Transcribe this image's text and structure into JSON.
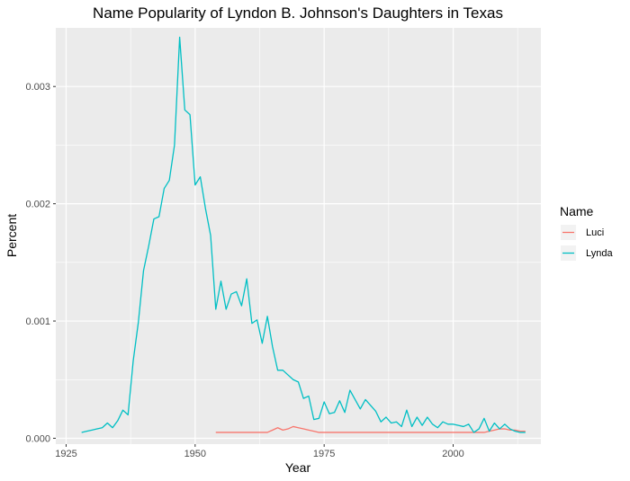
{
  "chart_data": {
    "type": "line",
    "title": "Name Popularity of Lyndon B. Johnson's Daughters in Texas",
    "xlabel": "Year",
    "ylabel": "Percent",
    "xlim": [
      1923,
      2017
    ],
    "ylim": [
      -5e-05,
      0.0035
    ],
    "x_ticks": [
      1925,
      1950,
      1975,
      2000
    ],
    "x_tick_labels": [
      "1925",
      "1950",
      "1975",
      "2000"
    ],
    "y_ticks": [
      0.0,
      0.001,
      0.002,
      0.003
    ],
    "y_tick_labels": [
      "0.000",
      "0.001",
      "0.002",
      "0.003"
    ],
    "grid": true,
    "legend": {
      "title": "Name",
      "position": "right"
    },
    "series": [
      {
        "name": "Luci",
        "color": "#F8766D",
        "x": [
          1954,
          1955,
          1956,
          1957,
          1958,
          1959,
          1960,
          1961,
          1962,
          1963,
          1964,
          1965,
          1966,
          1967,
          1968,
          1969,
          1970,
          1971,
          1972,
          1973,
          1974,
          1975,
          1976,
          1977,
          1978,
          1979,
          1980,
          1981,
          1982,
          1983,
          1984,
          1985,
          1986,
          1987,
          1988,
          1989,
          1990,
          1991,
          1992,
          1993,
          1994,
          1995,
          1996,
          1997,
          1998,
          1999,
          2000,
          2001,
          2002,
          2003,
          2004,
          2005,
          2006,
          2007,
          2008,
          2009,
          2010,
          2011,
          2012,
          2013,
          2014
        ],
        "y": [
          5e-05,
          5e-05,
          5e-05,
          5e-05,
          5e-05,
          5e-05,
          5e-05,
          5e-05,
          5e-05,
          5e-05,
          5e-05,
          7e-05,
          9e-05,
          7e-05,
          8e-05,
          0.0001,
          9e-05,
          8e-05,
          7e-05,
          6e-05,
          5e-05,
          5e-05,
          5e-05,
          5e-05,
          5e-05,
          5e-05,
          5e-05,
          5e-05,
          5e-05,
          5e-05,
          5e-05,
          5e-05,
          5e-05,
          5e-05,
          5e-05,
          5e-05,
          5e-05,
          5e-05,
          5e-05,
          5e-05,
          5e-05,
          5e-05,
          5e-05,
          5e-05,
          5e-05,
          5e-05,
          5e-05,
          5e-05,
          5e-05,
          5e-05,
          5e-05,
          5e-05,
          5e-05,
          6e-05,
          7e-05,
          8e-05,
          8e-05,
          7e-05,
          7e-05,
          6e-05,
          6e-05
        ]
      },
      {
        "name": "Lynda",
        "color": "#00BFC4",
        "x": [
          1928,
          1929,
          1930,
          1931,
          1932,
          1933,
          1934,
          1935,
          1936,
          1937,
          1938,
          1939,
          1940,
          1941,
          1942,
          1943,
          1944,
          1945,
          1946,
          1947,
          1948,
          1949,
          1950,
          1951,
          1952,
          1953,
          1954,
          1955,
          1956,
          1957,
          1958,
          1959,
          1960,
          1961,
          1962,
          1963,
          1964,
          1965,
          1966,
          1967,
          1968,
          1969,
          1970,
          1971,
          1972,
          1973,
          1974,
          1975,
          1976,
          1977,
          1978,
          1979,
          1980,
          1981,
          1982,
          1983,
          1984,
          1985,
          1986,
          1987,
          1988,
          1989,
          1990,
          1991,
          1992,
          1993,
          1994,
          1995,
          1996,
          1997,
          1998,
          1999,
          2000,
          2001,
          2002,
          2003,
          2004,
          2005,
          2006,
          2007,
          2008,
          2009,
          2010,
          2011,
          2012,
          2013,
          2014
        ],
        "y": [
          5e-05,
          6e-05,
          7e-05,
          8e-05,
          9e-05,
          0.00013,
          9e-05,
          0.00015,
          0.00024,
          0.0002,
          0.00066,
          0.00099,
          0.00143,
          0.00164,
          0.00187,
          0.00189,
          0.00213,
          0.0022,
          0.0025,
          0.00342,
          0.0028,
          0.00276,
          0.00216,
          0.00223,
          0.00196,
          0.00173,
          0.0011,
          0.00134,
          0.0011,
          0.00123,
          0.00125,
          0.00113,
          0.00136,
          0.00098,
          0.00101,
          0.00081,
          0.00104,
          0.00078,
          0.00058,
          0.00058,
          0.00054,
          0.0005,
          0.00048,
          0.00034,
          0.00036,
          0.00016,
          0.00017,
          0.00031,
          0.00021,
          0.00022,
          0.00032,
          0.00022,
          0.00041,
          0.00033,
          0.00025,
          0.00033,
          0.00028,
          0.00023,
          0.00014,
          0.00018,
          0.00013,
          0.00014,
          0.0001,
          0.00024,
          0.0001,
          0.00018,
          0.00011,
          0.00018,
          0.00012,
          9e-05,
          0.00014,
          0.00012,
          0.00012,
          0.00011,
          0.0001,
          0.00012,
          5e-05,
          8e-05,
          0.00017,
          6e-05,
          0.00013,
          8e-05,
          0.00012,
          8e-05,
          6e-05,
          5e-05,
          5e-05
        ]
      }
    ]
  }
}
